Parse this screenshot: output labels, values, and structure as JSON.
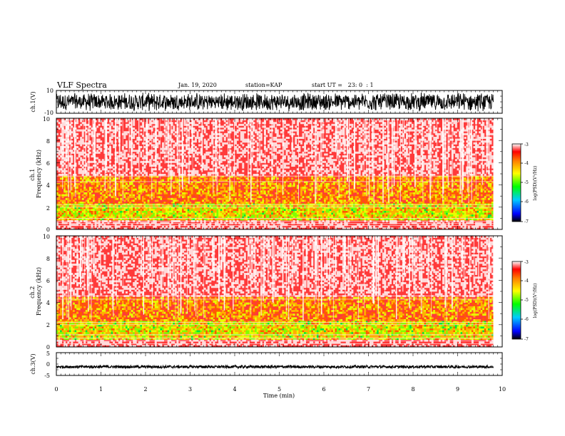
{
  "header": {
    "title": "VLF Spectra",
    "date": "Jan. 19, 2020",
    "station": "station=KAP",
    "start": "start UT =   23: 0  : 1"
  },
  "chart_data": [
    {
      "type": "line",
      "panel": "ch1-waveform",
      "ylabel": "ch.1(V)",
      "ylim": [
        -10,
        10
      ],
      "yticks": [
        "10",
        "-10"
      ],
      "xlim": [
        0,
        10
      ],
      "data_extent_min": 9.8,
      "amplitude_envelope_V": [
        -8.5,
        8.5
      ]
    },
    {
      "type": "heatmap",
      "panel": "ch1-spectrogram",
      "ylabel": "ch.1\nFrequency (kHz)",
      "ylim": [
        0,
        10
      ],
      "yticks": [
        "0",
        "2",
        "4",
        "6",
        "8",
        "10"
      ],
      "xlim": [
        0,
        10
      ],
      "colorbar": {
        "label": "log(PSD)(V²/Hz)",
        "range": [
          -7,
          -3
        ],
        "ticks": [
          "-3",
          "-4",
          "-5",
          "-6",
          "-7"
        ]
      },
      "bands_kHz": {
        "dense_low": [
          0.9,
          2.3
        ],
        "mid_activity": [
          2.3,
          4.8
        ],
        "high_sparse": [
          4.8,
          10
        ]
      },
      "horizontal_lines_kHz": [
        0.35,
        0.55,
        0.75,
        1.0,
        2.0,
        2.2,
        4.3,
        4.8
      ]
    },
    {
      "type": "heatmap",
      "panel": "ch2-spectrogram",
      "ylabel": "ch.2\nFrequency (kHz)",
      "ylim": [
        0,
        10
      ],
      "yticks": [
        "0",
        "2",
        "4",
        "6",
        "8",
        "10"
      ],
      "xlim": [
        0,
        10
      ],
      "colorbar": {
        "label": "log(PSD)(V²/Hz)",
        "range": [
          -7,
          -3
        ],
        "ticks": [
          "-3",
          "-4",
          "-5",
          "-6",
          "-7"
        ]
      },
      "bands_kHz": {
        "dense_low": [
          0.6,
          2.3
        ],
        "mid_activity": [
          2.3,
          4.5
        ],
        "high_sparse": [
          4.5,
          10
        ]
      },
      "horizontal_lines_kHz": [
        0.3,
        0.55,
        0.8,
        1.1,
        2.0,
        2.2,
        4.3,
        4.6
      ]
    },
    {
      "type": "line",
      "panel": "ch3-waveform",
      "ylabel": "ch.3(V)",
      "ylim": [
        -5,
        5
      ],
      "yticks": [
        "5",
        "0",
        "-5"
      ],
      "xlim": [
        0,
        10
      ],
      "data_extent_min": 9.8,
      "level_V": -1.2,
      "amplitude_envelope_V": [
        -1.8,
        -0.6
      ],
      "xlabel": "Time (min)",
      "xticks": [
        "0",
        "1",
        "2",
        "3",
        "4",
        "5",
        "6",
        "7",
        "8",
        "9",
        "10"
      ]
    }
  ]
}
